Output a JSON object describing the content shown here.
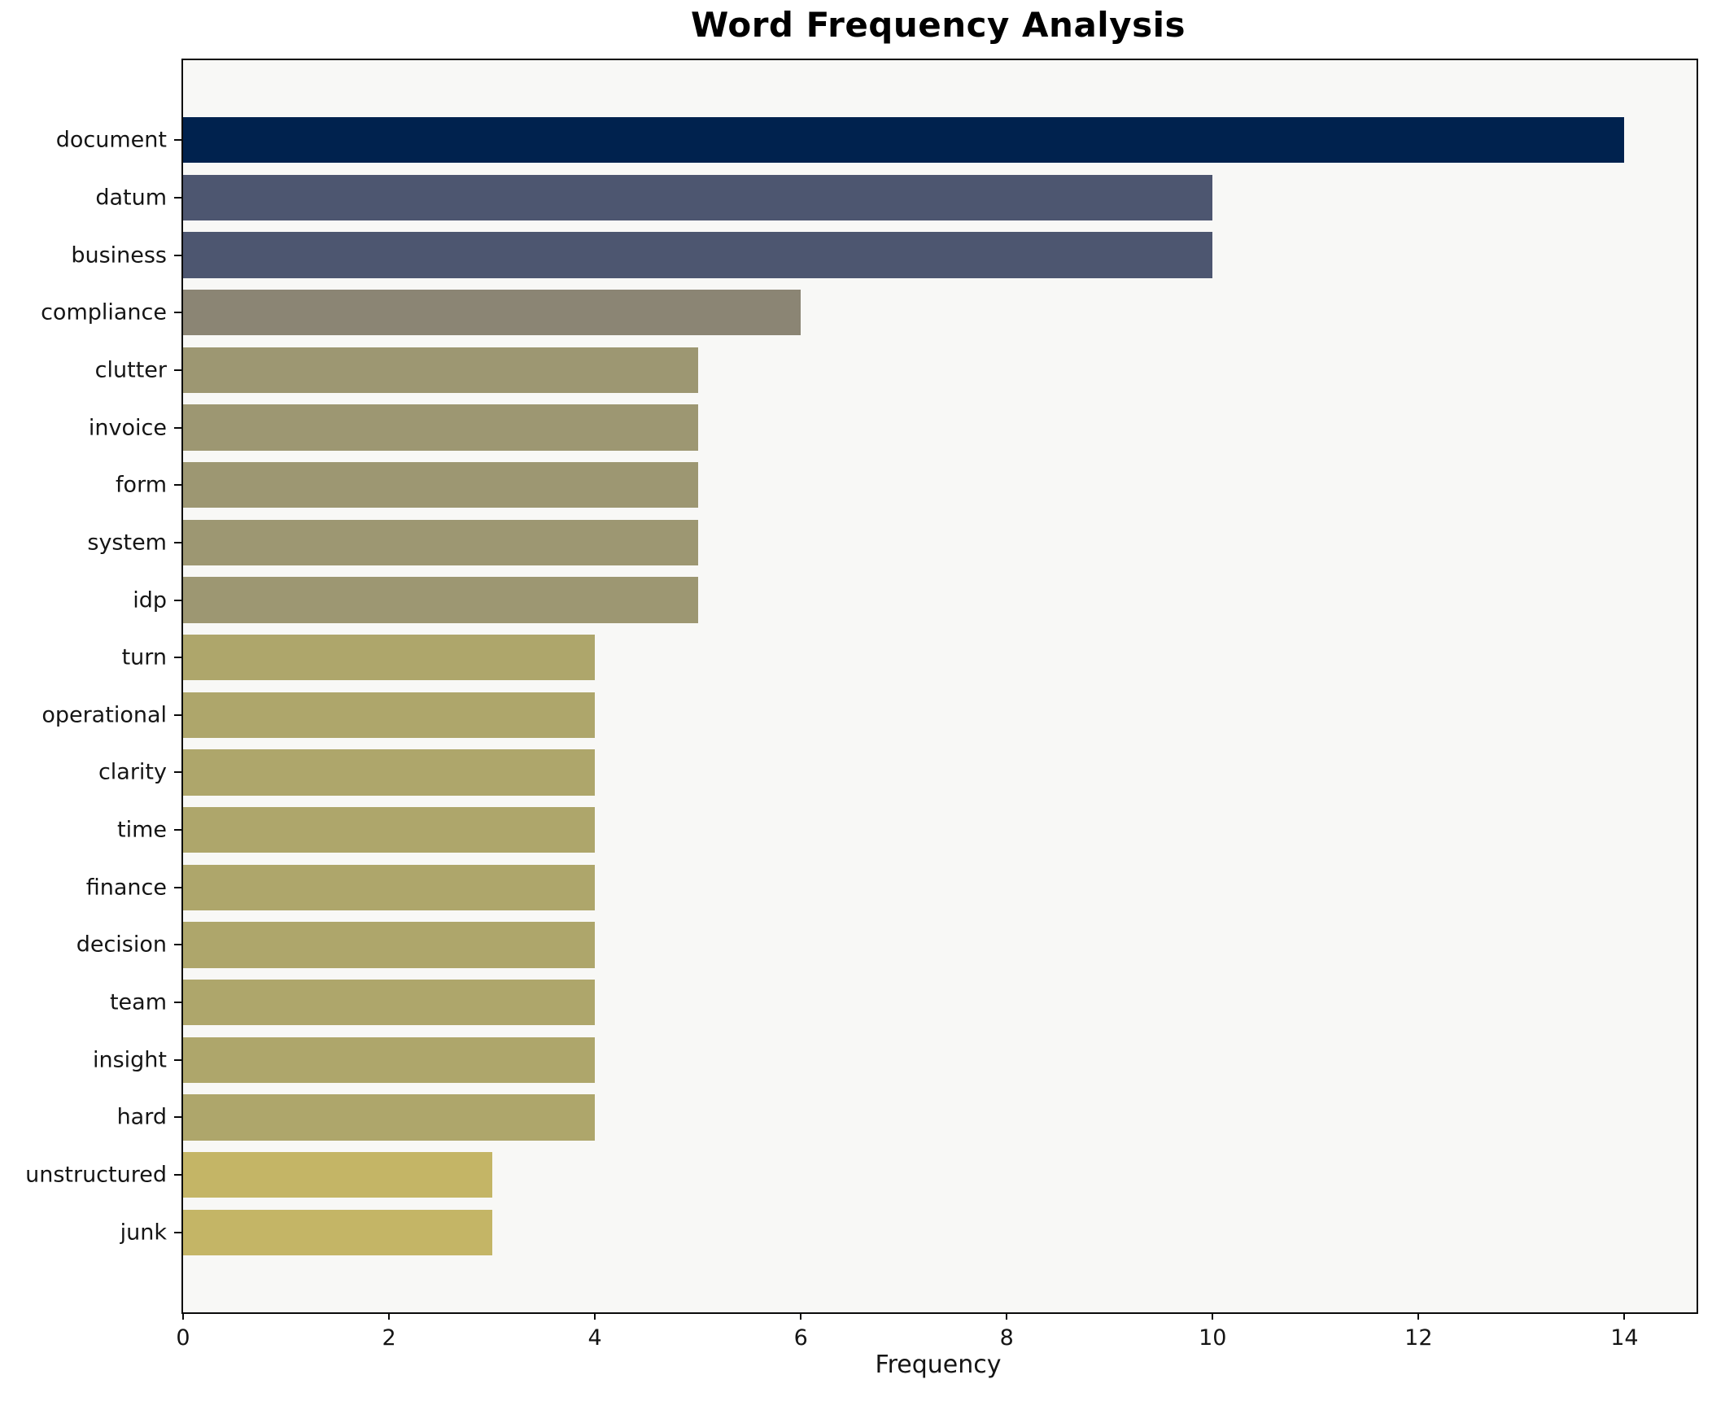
{
  "chart_data": {
    "type": "bar",
    "orientation": "horizontal",
    "title": "Word Frequency Analysis",
    "xlabel": "Frequency",
    "ylabel": "",
    "categories": [
      "document",
      "datum",
      "business",
      "compliance",
      "clutter",
      "invoice",
      "form",
      "system",
      "idp",
      "turn",
      "operational",
      "clarity",
      "time",
      "finance",
      "decision",
      "team",
      "insight",
      "hard",
      "unstructured",
      "junk"
    ],
    "values": [
      14,
      10,
      10,
      6,
      5,
      5,
      5,
      5,
      5,
      4,
      4,
      4,
      4,
      4,
      4,
      4,
      4,
      4,
      3,
      3
    ],
    "bar_colors": [
      "#00224E",
      "#4D5670",
      "#4D5670",
      "#8B8574",
      "#9D9772",
      "#9D9772",
      "#9D9772",
      "#9D9772",
      "#9D9772",
      "#AEA66B",
      "#AEA66B",
      "#AEA66B",
      "#AEA66B",
      "#AEA66B",
      "#AEA66B",
      "#AEA66B",
      "#AEA66B",
      "#AEA66B",
      "#C4B566",
      "#C4B566"
    ],
    "xlim": [
      0,
      14.7
    ],
    "xticks": [
      0,
      2,
      4,
      6,
      8,
      10,
      12,
      14
    ],
    "grid": false,
    "legend_position": "none",
    "colormap": "cividis"
  },
  "colors": {
    "figure_bg": "#FFFFFF",
    "plot_bg": "#F8F8F6",
    "axis": "#0A0A0A",
    "text": "#151515"
  }
}
